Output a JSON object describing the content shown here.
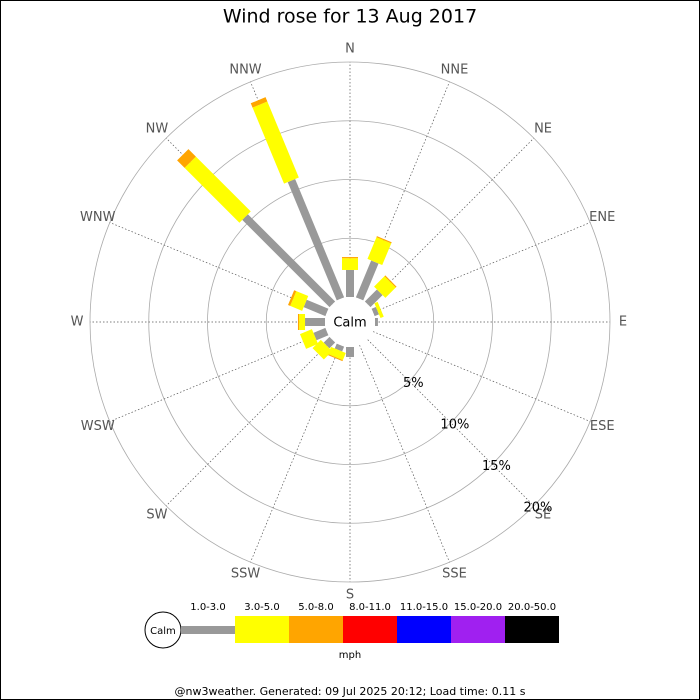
{
  "chart_data": {
    "type": "windrose",
    "title": "Wind rose for 13 Aug 2017",
    "calm_label": "Calm",
    "units": "mph",
    "footer": "@nw3weather. Generated: 09 Jul 2025 20:12; Load time: 0.11 s",
    "categories": [
      "N",
      "NNE",
      "NE",
      "ENE",
      "E",
      "ESE",
      "SE",
      "SSE",
      "S",
      "SSW",
      "SW",
      "WSW",
      "W",
      "WNW",
      "NW",
      "NNW"
    ],
    "rlim": [
      0,
      20
    ],
    "rticks": [
      {
        "value": 5,
        "label": "5%"
      },
      {
        "value": 10,
        "label": "10%"
      },
      {
        "value": 15,
        "label": "15%"
      },
      {
        "value": 20,
        "label": "20%"
      }
    ],
    "series": [
      {
        "name": "1.0-3.0",
        "color": "#999999",
        "values": [
          2.3,
          3.4,
          1.45,
          0.4,
          0.25,
          0,
          0,
          0,
          0.85,
          0.45,
          0.7,
          1.1,
          1.7,
          2.0,
          10.5,
          10.9
        ]
      },
      {
        "name": "3.0-5.0",
        "color": "#ffff00",
        "values": [
          1.0,
          2.0,
          1.25,
          0.3,
          0,
          0,
          0,
          0,
          0,
          0.65,
          1.0,
          1.1,
          0.5,
          1.1,
          6.6,
          7.0
        ]
      },
      {
        "name": "5.0-8.0",
        "color": "#ffa500",
        "values": [
          0.1,
          0.1,
          0.1,
          0,
          0,
          0,
          0,
          0,
          0,
          0.1,
          0,
          0,
          0.1,
          0.2,
          0.9,
          0.4
        ]
      },
      {
        "name": "8.0-11.0",
        "color": "#ff0000",
        "values": [
          0,
          0,
          0,
          0,
          0,
          0,
          0,
          0,
          0,
          0,
          0,
          0,
          0,
          0,
          0,
          0
        ]
      },
      {
        "name": "11.0-15.0",
        "color": "#0000ff",
        "values": [
          0,
          0,
          0,
          0,
          0,
          0,
          0,
          0,
          0,
          0,
          0,
          0,
          0,
          0,
          0,
          0
        ]
      },
      {
        "name": "15.0-20.0",
        "color": "#a020f0",
        "values": [
          0,
          0,
          0,
          0,
          0,
          0,
          0,
          0,
          0,
          0,
          0,
          0,
          0,
          0,
          0,
          0
        ]
      },
      {
        "name": "20.0-50.0",
        "color": "#000000",
        "values": [
          0,
          0,
          0,
          0,
          0,
          0,
          0,
          0,
          0,
          0,
          0,
          0,
          0,
          0,
          0,
          0
        ]
      }
    ]
  }
}
